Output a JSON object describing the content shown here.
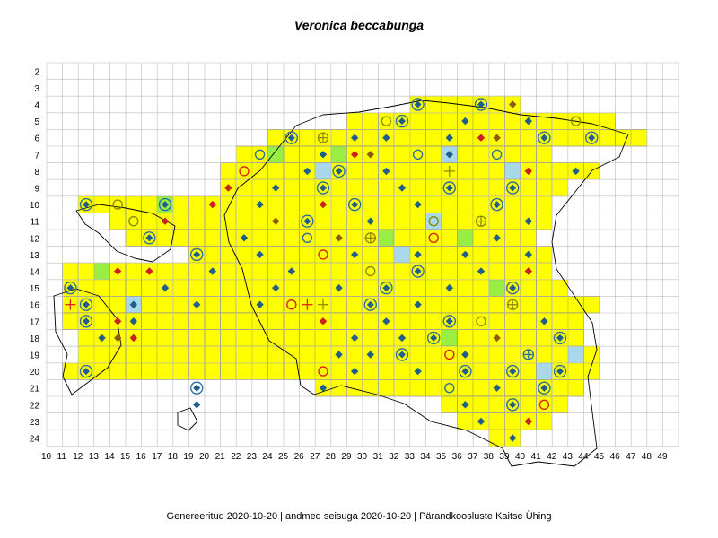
{
  "title": "Veronica beccabunga",
  "footer": {
    "generated": "Genereeritud 2020-10-20",
    "data_state": "andmed seisuga 2020-10-20",
    "organization": "Pärandkoosluste Kaitse Ühing",
    "separator": "|"
  },
  "grid": {
    "columns": [
      10,
      11,
      12,
      13,
      14,
      15,
      16,
      17,
      18,
      19,
      20,
      21,
      22,
      23,
      24,
      25,
      26,
      27,
      28,
      29,
      30,
      31,
      32,
      33,
      34,
      35,
      36,
      37,
      38,
      39,
      40,
      41,
      42,
      43,
      44,
      45,
      46,
      47,
      48,
      49
    ],
    "rows": [
      2,
      3,
      4,
      5,
      6,
      7,
      8,
      9,
      10,
      11,
      12,
      13,
      14,
      15,
      16,
      17,
      18,
      19,
      20,
      21,
      22,
      23,
      24
    ]
  },
  "colors": {
    "cell_fill": "#ffff00",
    "cell_alt_green": "#99ee44",
    "cell_alt_blue": "#a8d8ea",
    "grid_line": "#bdbdbd",
    "coast_line": "#000000",
    "marker_diamond_blue": "#1f5f8a",
    "marker_diamond_red": "#cc1f1f",
    "marker_diamond_brown": "#8a5a10",
    "marker_circle_olive": "#8c8c00",
    "marker_circle_blue": "#2a6fa0",
    "marker_circle_red": "#dd2020"
  },
  "occupied_rows": [
    {
      "row": 4,
      "from": 33,
      "to": 39
    },
    {
      "row": 5,
      "from": 29,
      "to": 45
    },
    {
      "row": 6,
      "from": 24,
      "to": 47
    },
    {
      "row": 7,
      "from": 22,
      "to": 41
    },
    {
      "row": 8,
      "from": 21,
      "to": 44
    },
    {
      "row": 9,
      "from": 21,
      "to": 42
    },
    {
      "row": 10,
      "from": 12,
      "to": 41
    },
    {
      "row": 11,
      "from": 14,
      "to": 41
    },
    {
      "row": 12,
      "from": 15,
      "to": 40
    },
    {
      "row": 13,
      "from": 19,
      "to": 41
    },
    {
      "row": 14,
      "from": 11,
      "to": 41
    },
    {
      "row": 15,
      "from": 11,
      "to": 42
    },
    {
      "row": 16,
      "from": 11,
      "to": 44
    },
    {
      "row": 17,
      "from": 11,
      "to": 43
    },
    {
      "row": 18,
      "from": 12,
      "to": 43
    },
    {
      "row": 19,
      "from": 12,
      "to": 44
    },
    {
      "row": 20,
      "from": 11,
      "to": 44
    },
    {
      "row": 21,
      "from": 27,
      "to": 43
    },
    {
      "row": 22,
      "from": 35,
      "to": 42
    },
    {
      "row": 23,
      "from": 36,
      "to": 41
    },
    {
      "row": 24,
      "from": 38,
      "to": 39
    }
  ],
  "markers": [
    {
      "col": 33,
      "row": 4,
      "type": "diamond-circle-blue"
    },
    {
      "col": 37,
      "row": 4,
      "type": "diamond-circle-blue"
    },
    {
      "col": 39,
      "row": 4,
      "type": "diamond-brown"
    },
    {
      "col": 31,
      "row": 5,
      "type": "circle-olive"
    },
    {
      "col": 32,
      "row": 5,
      "type": "diamond-circle-blue"
    },
    {
      "col": 36,
      "row": 5,
      "type": "diamond-blue"
    },
    {
      "col": 40,
      "row": 5,
      "type": "diamond-blue"
    },
    {
      "col": 43,
      "row": 5,
      "type": "circle-olive"
    },
    {
      "col": 25,
      "row": 6,
      "type": "diamond-circle-blue"
    },
    {
      "col": 27,
      "row": 6,
      "type": "plus-circle-olive"
    },
    {
      "col": 29,
      "row": 6,
      "type": "diamond-blue"
    },
    {
      "col": 31,
      "row": 6,
      "type": "diamond-blue"
    },
    {
      "col": 35,
      "row": 6,
      "type": "diamond-blue"
    },
    {
      "col": 37,
      "row": 6,
      "type": "diamond-red"
    },
    {
      "col": 38,
      "row": 6,
      "type": "diamond-brown"
    },
    {
      "col": 41,
      "row": 6,
      "type": "diamond-circle-blue"
    },
    {
      "col": 44,
      "row": 6,
      "type": "diamond-circle-blue"
    },
    {
      "col": 23,
      "row": 7,
      "type": "circle-blue"
    },
    {
      "col": 27,
      "row": 7,
      "type": "diamond-blue"
    },
    {
      "col": 29,
      "row": 7,
      "type": "diamond-red"
    },
    {
      "col": 30,
      "row": 7,
      "type": "diamond-brown"
    },
    {
      "col": 33,
      "row": 7,
      "type": "circle-blue"
    },
    {
      "col": 35,
      "row": 7,
      "type": "diamond-blue"
    },
    {
      "col": 38,
      "row": 7,
      "type": "circle-blue"
    },
    {
      "col": 22,
      "row": 8,
      "type": "circle-red"
    },
    {
      "col": 26,
      "row": 8,
      "type": "diamond-blue"
    },
    {
      "col": 28,
      "row": 8,
      "type": "diamond-circle-blue"
    },
    {
      "col": 31,
      "row": 8,
      "type": "diamond-blue"
    },
    {
      "col": 35,
      "row": 8,
      "type": "plus-olive"
    },
    {
      "col": 40,
      "row": 8,
      "type": "diamond-red"
    },
    {
      "col": 43,
      "row": 8,
      "type": "diamond-blue"
    },
    {
      "col": 21,
      "row": 9,
      "type": "diamond-red"
    },
    {
      "col": 24,
      "row": 9,
      "type": "diamond-blue"
    },
    {
      "col": 27,
      "row": 9,
      "type": "diamond-circle-blue"
    },
    {
      "col": 32,
      "row": 9,
      "type": "diamond-blue"
    },
    {
      "col": 35,
      "row": 9,
      "type": "diamond-circle-blue"
    },
    {
      "col": 39,
      "row": 9,
      "type": "diamond-circle-blue"
    },
    {
      "col": 12,
      "row": 10,
      "type": "diamond-circle-blue"
    },
    {
      "col": 14,
      "row": 10,
      "type": "circle-olive"
    },
    {
      "col": 17,
      "row": 10,
      "type": "diamond-circle-blue"
    },
    {
      "col": 20,
      "row": 10,
      "type": "diamond-red"
    },
    {
      "col": 23,
      "row": 10,
      "type": "diamond-blue"
    },
    {
      "col": 27,
      "row": 10,
      "type": "diamond-red"
    },
    {
      "col": 29,
      "row": 10,
      "type": "diamond-circle-blue"
    },
    {
      "col": 33,
      "row": 10,
      "type": "diamond-blue"
    },
    {
      "col": 38,
      "row": 10,
      "type": "diamond-circle-blue"
    },
    {
      "col": 15,
      "row": 11,
      "type": "circle-olive"
    },
    {
      "col": 17,
      "row": 11,
      "type": "diamond-red"
    },
    {
      "col": 24,
      "row": 11,
      "type": "diamond-brown"
    },
    {
      "col": 26,
      "row": 11,
      "type": "diamond-circle-blue"
    },
    {
      "col": 30,
      "row": 11,
      "type": "diamond-blue"
    },
    {
      "col": 34,
      "row": 11,
      "type": "circle-olive"
    },
    {
      "col": 37,
      "row": 11,
      "type": "plus-circle-olive"
    },
    {
      "col": 40,
      "row": 11,
      "type": "diamond-blue"
    },
    {
      "col": 16,
      "row": 12,
      "type": "diamond-circle-blue"
    },
    {
      "col": 22,
      "row": 12,
      "type": "diamond-blue"
    },
    {
      "col": 26,
      "row": 12,
      "type": "circle-blue"
    },
    {
      "col": 28,
      "row": 12,
      "type": "diamond-brown"
    },
    {
      "col": 30,
      "row": 12,
      "type": "plus-circle-olive"
    },
    {
      "col": 34,
      "row": 12,
      "type": "circle-red"
    },
    {
      "col": 38,
      "row": 12,
      "type": "diamond-blue"
    },
    {
      "col": 19,
      "row": 13,
      "type": "diamond-circle-blue"
    },
    {
      "col": 23,
      "row": 13,
      "type": "diamond-blue"
    },
    {
      "col": 27,
      "row": 13,
      "type": "circle-red"
    },
    {
      "col": 29,
      "row": 13,
      "type": "diamond-blue"
    },
    {
      "col": 33,
      "row": 13,
      "type": "diamond-blue"
    },
    {
      "col": 36,
      "row": 13,
      "type": "diamond-blue"
    },
    {
      "col": 40,
      "row": 13,
      "type": "diamond-blue"
    },
    {
      "col": 14,
      "row": 14,
      "type": "diamond-red"
    },
    {
      "col": 16,
      "row": 14,
      "type": "diamond-red"
    },
    {
      "col": 20,
      "row": 14,
      "type": "diamond-blue"
    },
    {
      "col": 25,
      "row": 14,
      "type": "diamond-blue"
    },
    {
      "col": 30,
      "row": 14,
      "type": "circle-olive"
    },
    {
      "col": 33,
      "row": 14,
      "type": "diamond-circle-blue"
    },
    {
      "col": 37,
      "row": 14,
      "type": "diamond-blue"
    },
    {
      "col": 40,
      "row": 14,
      "type": "diamond-red"
    },
    {
      "col": 11,
      "row": 15,
      "type": "diamond-circle-blue"
    },
    {
      "col": 17,
      "row": 15,
      "type": "diamond-blue"
    },
    {
      "col": 24,
      "row": 15,
      "type": "diamond-blue"
    },
    {
      "col": 28,
      "row": 15,
      "type": "diamond-blue"
    },
    {
      "col": 31,
      "row": 15,
      "type": "diamond-circle-blue"
    },
    {
      "col": 35,
      "row": 15,
      "type": "diamond-blue"
    },
    {
      "col": 39,
      "row": 15,
      "type": "diamond-circle-blue"
    },
    {
      "col": 11,
      "row": 16,
      "type": "plus-red"
    },
    {
      "col": 12,
      "row": 16,
      "type": "diamond-circle-blue"
    },
    {
      "col": 15,
      "row": 16,
      "type": "diamond-blue"
    },
    {
      "col": 19,
      "row": 16,
      "type": "diamond-blue"
    },
    {
      "col": 23,
      "row": 16,
      "type": "diamond-blue"
    },
    {
      "col": 25,
      "row": 16,
      "type": "circle-red"
    },
    {
      "col": 26,
      "row": 16,
      "type": "plus-red"
    },
    {
      "col": 27,
      "row": 16,
      "type": "plus-olive"
    },
    {
      "col": 30,
      "row": 16,
      "type": "diamond-circle-blue"
    },
    {
      "col": 33,
      "row": 16,
      "type": "diamond-blue"
    },
    {
      "col": 39,
      "row": 16,
      "type": "plus-circle-olive"
    },
    {
      "col": 12,
      "row": 17,
      "type": "diamond-circle-blue"
    },
    {
      "col": 14,
      "row": 17,
      "type": "diamond-red"
    },
    {
      "col": 15,
      "row": 17,
      "type": "diamond-blue"
    },
    {
      "col": 27,
      "row": 17,
      "type": "diamond-red"
    },
    {
      "col": 31,
      "row": 17,
      "type": "diamond-blue"
    },
    {
      "col": 35,
      "row": 17,
      "type": "diamond-circle-blue"
    },
    {
      "col": 37,
      "row": 17,
      "type": "circle-olive"
    },
    {
      "col": 41,
      "row": 17,
      "type": "diamond-blue"
    },
    {
      "col": 13,
      "row": 18,
      "type": "diamond-blue"
    },
    {
      "col": 14,
      "row": 18,
      "type": "diamond-brown"
    },
    {
      "col": 15,
      "row": 18,
      "type": "diamond-red"
    },
    {
      "col": 29,
      "row": 18,
      "type": "diamond-blue"
    },
    {
      "col": 32,
      "row": 18,
      "type": "diamond-blue"
    },
    {
      "col": 34,
      "row": 18,
      "type": "diamond-circle-blue"
    },
    {
      "col": 38,
      "row": 18,
      "type": "diamond-brown"
    },
    {
      "col": 42,
      "row": 18,
      "type": "diamond-circle-blue"
    },
    {
      "col": 28,
      "row": 19,
      "type": "diamond-blue"
    },
    {
      "col": 30,
      "row": 19,
      "type": "diamond-blue"
    },
    {
      "col": 32,
      "row": 19,
      "type": "diamond-circle-blue"
    },
    {
      "col": 35,
      "row": 19,
      "type": "circle-red"
    },
    {
      "col": 36,
      "row": 19,
      "type": "diamond-blue"
    },
    {
      "col": 40,
      "row": 19,
      "type": "plus-circle-blue"
    },
    {
      "col": 12,
      "row": 20,
      "type": "diamond-circle-blue"
    },
    {
      "col": 27,
      "row": 20,
      "type": "circle-red"
    },
    {
      "col": 29,
      "row": 20,
      "type": "diamond-blue"
    },
    {
      "col": 33,
      "row": 20,
      "type": "diamond-blue"
    },
    {
      "col": 36,
      "row": 20,
      "type": "diamond-circle-blue"
    },
    {
      "col": 39,
      "row": 20,
      "type": "diamond-circle-blue"
    },
    {
      "col": 42,
      "row": 20,
      "type": "diamond-circle-blue"
    },
    {
      "col": 19,
      "row": 21,
      "type": "diamond-circle-blue"
    },
    {
      "col": 27,
      "row": 21,
      "type": "diamond-blue"
    },
    {
      "col": 35,
      "row": 21,
      "type": "circle-blue"
    },
    {
      "col": 38,
      "row": 21,
      "type": "diamond-blue"
    },
    {
      "col": 41,
      "row": 21,
      "type": "diamond-circle-blue"
    },
    {
      "col": 19,
      "row": 22,
      "type": "diamond-blue"
    },
    {
      "col": 36,
      "row": 22,
      "type": "diamond-blue"
    },
    {
      "col": 39,
      "row": 22,
      "type": "diamond-circle-blue"
    },
    {
      "col": 41,
      "row": 22,
      "type": "circle-red"
    },
    {
      "col": 37,
      "row": 23,
      "type": "diamond-blue"
    },
    {
      "col": 40,
      "row": 23,
      "type": "diamond-red"
    },
    {
      "col": 39,
      "row": 24,
      "type": "diamond-blue"
    }
  ]
}
